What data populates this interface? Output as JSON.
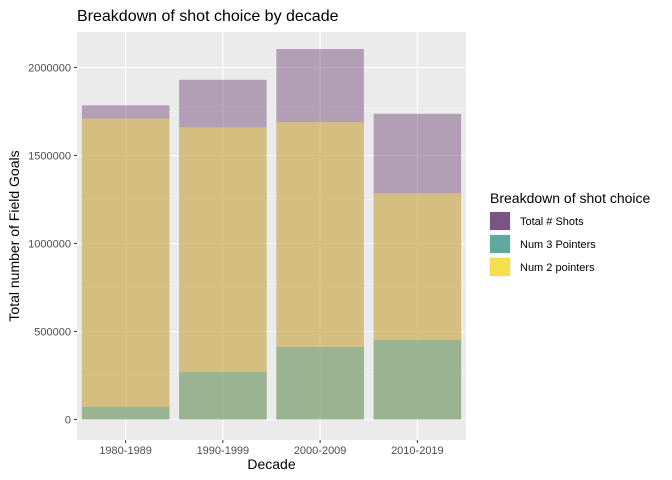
{
  "chart_data": {
    "type": "bar",
    "title": "Breakdown of shot choice by decade",
    "xlabel": "Decade",
    "ylabel": "Total number of Field Goals",
    "categories": [
      "1980-1989",
      "1990-1999",
      "2000-2009",
      "2010-2019"
    ],
    "ylim": [
      0,
      2200000
    ],
    "yticks": [
      0,
      500000,
      1000000,
      1500000,
      2000000
    ],
    "ytick_labels": [
      "0",
      "500000",
      "1000000",
      "1500000",
      "2000000"
    ],
    "grid": true,
    "overlay": true,
    "bar_opacity": 0.5,
    "legend": {
      "title": "Breakdown of shot choice",
      "placement": "right"
    },
    "series": [
      {
        "name": "Total # Shots",
        "color": "#7a5482",
        "values": [
          1785000,
          1930000,
          2105000,
          1737000
        ]
      },
      {
        "name": "Num 2 pointers",
        "color": "#f5e04b",
        "values": [
          1710000,
          1660000,
          1690000,
          1285000
        ]
      },
      {
        "name": "Num 3 Pointers",
        "color": "#5fa8a0",
        "values": [
          72000,
          270000,
          412000,
          452000
        ]
      }
    ],
    "legend_order": [
      "Total # Shots",
      "Num 3 Pointers",
      "Num 2 pointers"
    ]
  }
}
